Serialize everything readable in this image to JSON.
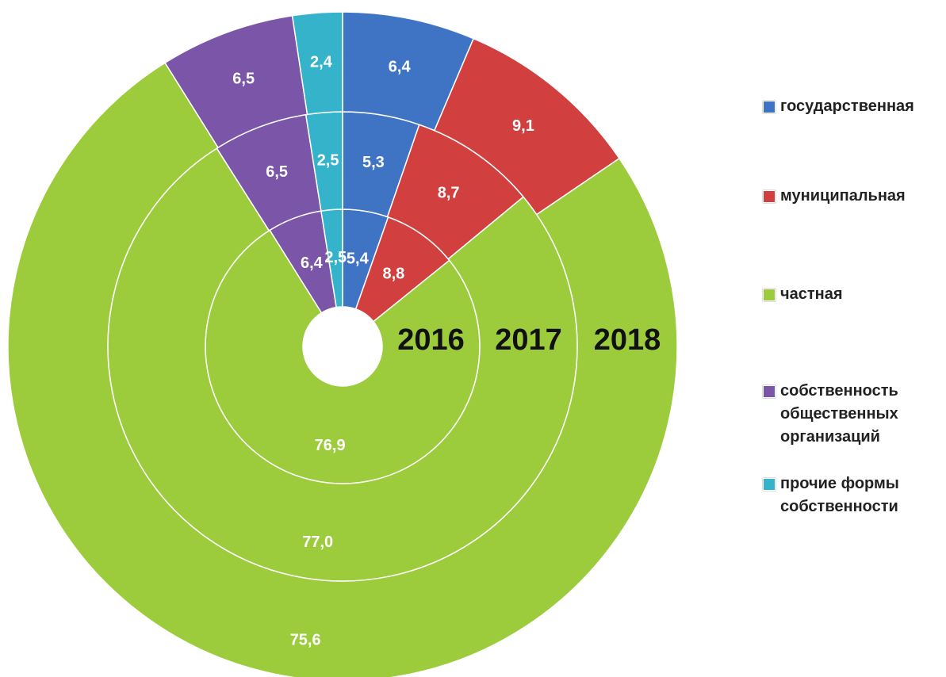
{
  "chart_data": {
    "type": "doughnut",
    "categories": [
      "государственная",
      "муниципальная",
      "частная",
      "собственность общественных организаций",
      "прочие формы собственности"
    ],
    "colors": [
      "#3f74c5",
      "#d13f3f",
      "#9ccc3c",
      "#7a55a8",
      "#35b3cb"
    ],
    "series": [
      {
        "name": "2016",
        "values": [
          5.4,
          8.8,
          76.9,
          6.4,
          2.5
        ],
        "value_labels": [
          "5,4",
          "8,8",
          "76,9",
          "6,4",
          "2,5"
        ]
      },
      {
        "name": "2017",
        "values": [
          5.3,
          8.7,
          77.0,
          6.5,
          2.5
        ],
        "value_labels": [
          "5,3",
          "8,7",
          "77,0",
          "6,5",
          "2,5"
        ]
      },
      {
        "name": "2018",
        "values": [
          6.4,
          9.1,
          75.6,
          6.5,
          2.4
        ],
        "value_labels": [
          "6,4",
          "9,1",
          "75,6",
          "6,5",
          "2,4"
        ]
      }
    ],
    "legend": "right"
  }
}
